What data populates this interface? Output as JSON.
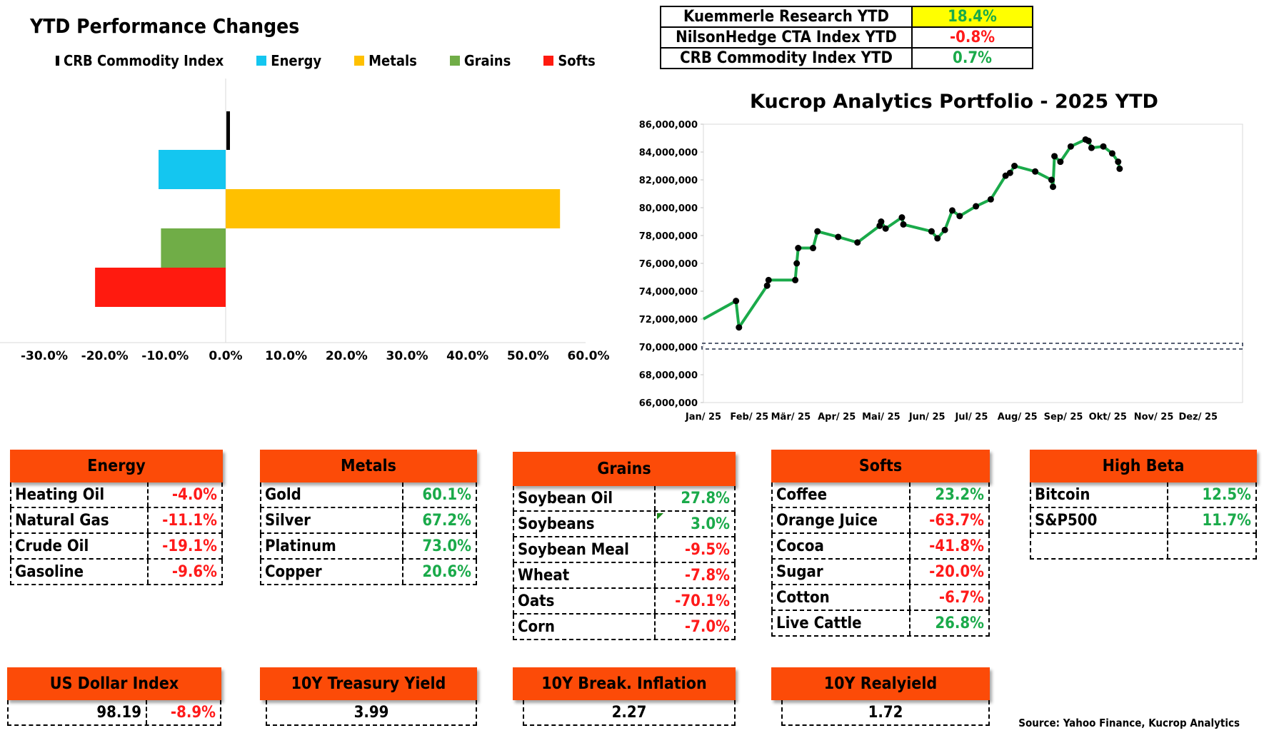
{
  "bar_chart": {
    "title": "YTD Performance Changes",
    "legend": [
      {
        "label": "CRB Commodity Index",
        "color": "#000000"
      },
      {
        "label": "Energy",
        "color": "#14c6f0"
      },
      {
        "label": "Metals",
        "color": "#ffc000"
      },
      {
        "label": "Grains",
        "color": "#70ad47"
      },
      {
        "label": "Softs",
        "color": "#ff1a0f"
      }
    ]
  },
  "summary": {
    "rows": [
      {
        "label": "Kuemmerle Research YTD",
        "value": "18.4%",
        "bg": "#ffff00",
        "color": "#1aaa4a"
      },
      {
        "label": "NilsonHedge CTA Index YTD",
        "value": "-0.8%",
        "bg": "#ffffff",
        "color": "#ff1a1a"
      },
      {
        "label": "CRB Commodity Index YTD",
        "value": "0.7%",
        "bg": "#ffffff",
        "color": "#1aaa4a"
      }
    ]
  },
  "categories": [
    {
      "title": "Energy",
      "rows": [
        {
          "name": "Heating Oil",
          "value": "-4.0%"
        },
        {
          "name": "Natural Gas",
          "value": "-11.1%"
        },
        {
          "name": "Crude Oil",
          "value": "-19.1%"
        },
        {
          "name": "Gasoline",
          "value": "-9.6%"
        }
      ]
    },
    {
      "title": "Metals",
      "rows": [
        {
          "name": "Gold",
          "value": "60.1%"
        },
        {
          "name": "Silver",
          "value": "67.2%"
        },
        {
          "name": "Platinum",
          "value": "73.0%"
        },
        {
          "name": "Copper",
          "value": "20.6%"
        }
      ]
    },
    {
      "title": "Grains",
      "rows": [
        {
          "name": "Soybean Oil",
          "value": "27.8%"
        },
        {
          "name": "Soybeans",
          "value": "3.0%"
        },
        {
          "name": "Soybean Meal",
          "value": "-9.5%"
        },
        {
          "name": "Wheat",
          "value": "-7.8%"
        },
        {
          "name": "Oats",
          "value": "-70.1%"
        },
        {
          "name": "Corn",
          "value": "-7.0%"
        }
      ]
    },
    {
      "title": "Softs",
      "rows": [
        {
          "name": "Coffee",
          "value": "23.2%"
        },
        {
          "name": "Orange Juice",
          "value": "-63.7%"
        },
        {
          "name": "Cocoa",
          "value": "-41.8%"
        },
        {
          "name": "Sugar",
          "value": "-20.0%"
        },
        {
          "name": "Cotton",
          "value": "-6.7%"
        },
        {
          "name": "Live Cattle",
          "value": "26.8%"
        }
      ]
    },
    {
      "title": "High Beta",
      "rows": [
        {
          "name": "Bitcoin",
          "value": "12.5%"
        },
        {
          "name": "S&P500",
          "value": "11.7%"
        },
        {
          "name": "",
          "value": ""
        }
      ]
    }
  ],
  "macro": [
    {
      "title": "US Dollar Index",
      "value": "98.19",
      "change": "-8.9%"
    },
    {
      "title": "10Y Treasury Yield",
      "value": "3.99"
    },
    {
      "title": "10Y Break. Inflation",
      "value": "2.27"
    },
    {
      "title": "10Y Realyield",
      "value": "1.72"
    }
  ],
  "source": "Source: Yahoo Finance, Kucrop Analytics",
  "chart_data": [
    {
      "type": "bar",
      "orientation": "horizontal",
      "title": "YTD Performance Changes",
      "categories": [
        "CRB Commodity Index",
        "Energy",
        "Metals",
        "Grains",
        "Softs"
      ],
      "values": [
        0.7,
        -11.1,
        55.3,
        -10.7,
        -21.6
      ],
      "colors": [
        "#000000",
        "#14c6f0",
        "#ffc000",
        "#70ad47",
        "#ff1a0f"
      ],
      "xlim": [
        -30,
        60
      ],
      "xticks": [
        -30,
        -20,
        -10,
        0,
        10,
        20,
        30,
        40,
        50,
        60
      ],
      "xtick_labels": [
        "-30.0%",
        "-20.0%",
        "-10.0%",
        "0.0%",
        "10.0%",
        "20.0%",
        "30.0%",
        "40.0%",
        "50.0%",
        "60.0%"
      ],
      "xlabel": "",
      "ylabel": "",
      "grid": false,
      "legend": "top"
    },
    {
      "type": "line",
      "title": "Kucrop Analytics Portfolio - 2025 YTD",
      "xlabel": "",
      "ylabel": "",
      "ylim": [
        66000000,
        86000000
      ],
      "yticks": [
        66000000,
        68000000,
        70000000,
        72000000,
        74000000,
        76000000,
        78000000,
        80000000,
        82000000,
        84000000,
        86000000
      ],
      "ytick_labels": [
        "66,000,000",
        "68,000,000",
        "70,000,000",
        "72,000,000",
        "74,000,000",
        "76,000,000",
        "78,000,000",
        "80,000,000",
        "82,000,000",
        "84,000,000",
        "86,000,000"
      ],
      "xlim": [
        "2025-01-01",
        "2025-12-31"
      ],
      "xticks": [
        "2025-01-01",
        "2025-02-01",
        "2025-03-01",
        "2025-04-01",
        "2025-05-01",
        "2025-06-01",
        "2025-07-01",
        "2025-08-01",
        "2025-09-01",
        "2025-10-01",
        "2025-11-01",
        "2025-12-01"
      ],
      "xtick_labels": [
        "Jan/ 25",
        "Feb/ 25",
        "Mär/ 25",
        "Apr/ 25",
        "Mai/ 25",
        "Jun/ 25",
        "Jul/ 25",
        "Aug/ 25",
        "Sep/ 25",
        "Okt/ 25",
        "Nov/ 25",
        "Dez/ 25"
      ],
      "series": [
        {
          "color": "#1aaa4a",
          "x": [
            "2025-01-01",
            "2025-01-23",
            "2025-01-25",
            "2025-02-13",
            "2025-02-14",
            "2025-03-04",
            "2025-03-05",
            "2025-03-06",
            "2025-03-16",
            "2025-03-19",
            "2025-04-02",
            "2025-04-15",
            "2025-04-30",
            "2025-05-01",
            "2025-05-04",
            "2025-05-15",
            "2025-05-16",
            "2025-06-04",
            "2025-06-08",
            "2025-06-13",
            "2025-06-18",
            "2025-06-23",
            "2025-07-04",
            "2025-07-14",
            "2025-07-24",
            "2025-07-27",
            "2025-07-30",
            "2025-08-13",
            "2025-08-24",
            "2025-08-25",
            "2025-08-26",
            "2025-08-30",
            "2025-09-06",
            "2025-09-16",
            "2025-09-18",
            "2025-09-20",
            "2025-09-28",
            "2025-10-04",
            "2025-10-08",
            "2025-10-09"
          ],
          "y": [
            72000000,
            73300000,
            71400000,
            74400000,
            74800000,
            74800000,
            76000000,
            77100000,
            77100000,
            78300000,
            77900000,
            77500000,
            78700000,
            79000000,
            78500000,
            79300000,
            78800000,
            78300000,
            77800000,
            78400000,
            79800000,
            79400000,
            80100000,
            80600000,
            82300000,
            82500000,
            83000000,
            82600000,
            82000000,
            81500000,
            83700000,
            83300000,
            84400000,
            84900000,
            84800000,
            84300000,
            84400000,
            83900000,
            83300000,
            82800000
          ]
        }
      ],
      "baseline": 70000000,
      "grid": false
    }
  ]
}
